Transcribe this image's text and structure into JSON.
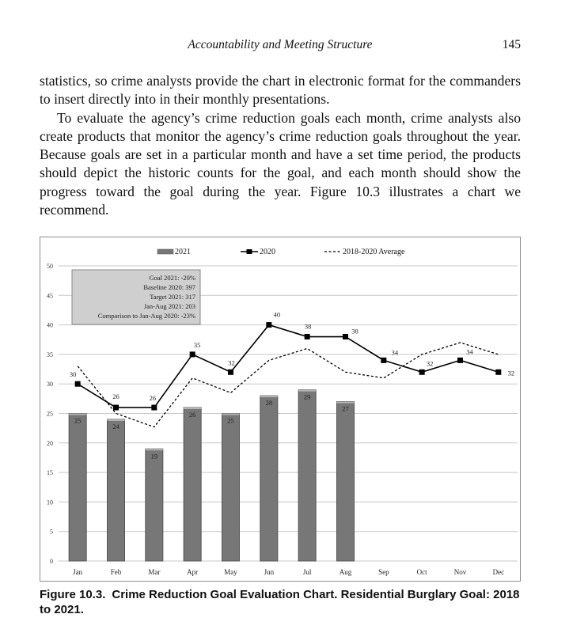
{
  "header": {
    "running_title": "Accountability and Meeting Structure",
    "page_number": "145"
  },
  "body": {
    "paragraphs": [
      "statistics, so crime analysts provide the chart in electronic format for the com­manders to insert directly into in their monthly presentations.",
      "To evaluate the agency’s crime reduction goals each month, crime analysts also create products that monitor the agency’s crime reduction goals through­out the year. Because goals are set in a particular month and have a set time period, the products should depict the historic counts for the goal, and each month should show the progress toward the goal during the year. Figure 10.3 illustrates a chart we recommend."
    ]
  },
  "caption": {
    "label": "Figure 10.3.",
    "text": "Crime Reduction Goal Evaluation Chart. Residential Burglary Goal: 2018 to 2021."
  },
  "colors": {
    "bar": "#777777",
    "bar_edge": "#555555",
    "line": "#000000",
    "grid": "#c8c8c8",
    "goal_box_bg": "#cfcfcf"
  },
  "chart_data": {
    "type": "bar",
    "categories": [
      "Jan",
      "Feb",
      "Mar",
      "Apr",
      "May",
      "Jun",
      "Jul",
      "Aug",
      "Sep",
      "Oct",
      "Nov",
      "Dec"
    ],
    "ylim": [
      0,
      50
    ],
    "yticks": [
      0,
      5,
      10,
      15,
      20,
      25,
      30,
      35,
      40,
      45,
      50
    ],
    "grid": true,
    "legend_position": "top",
    "series": [
      {
        "name": "2021",
        "kind": "bar",
        "values": [
          25,
          24,
          19,
          26,
          25,
          28,
          29,
          27,
          null,
          null,
          null,
          null
        ],
        "labels": [
          "25",
          "24",
          "19",
          "26",
          "25",
          "28",
          "29",
          "27",
          "",
          "",
          "",
          ""
        ]
      },
      {
        "name": "2020",
        "kind": "line-marker",
        "values": [
          30,
          26,
          26,
          35,
          32,
          40,
          38,
          38,
          34,
          32,
          34,
          32
        ],
        "labels": [
          "30",
          "26",
          "26",
          "35",
          "32",
          "40",
          "38",
          "38",
          "34",
          "32",
          "34",
          "32"
        ]
      },
      {
        "name": "2018-2020 Average",
        "kind": "dashed-line",
        "values": [
          33,
          25,
          22.7,
          31,
          28.5,
          34,
          36,
          32,
          31,
          35,
          37,
          35
        ]
      }
    ],
    "annotation_box": {
      "lines": [
        "Goal 2021: -20%",
        "Baseline 2020:   397",
        "Target 2021:   317",
        "Jan-Aug 2021:   203",
        "Comparison to Jan-Aug 2020: -23%"
      ]
    }
  }
}
